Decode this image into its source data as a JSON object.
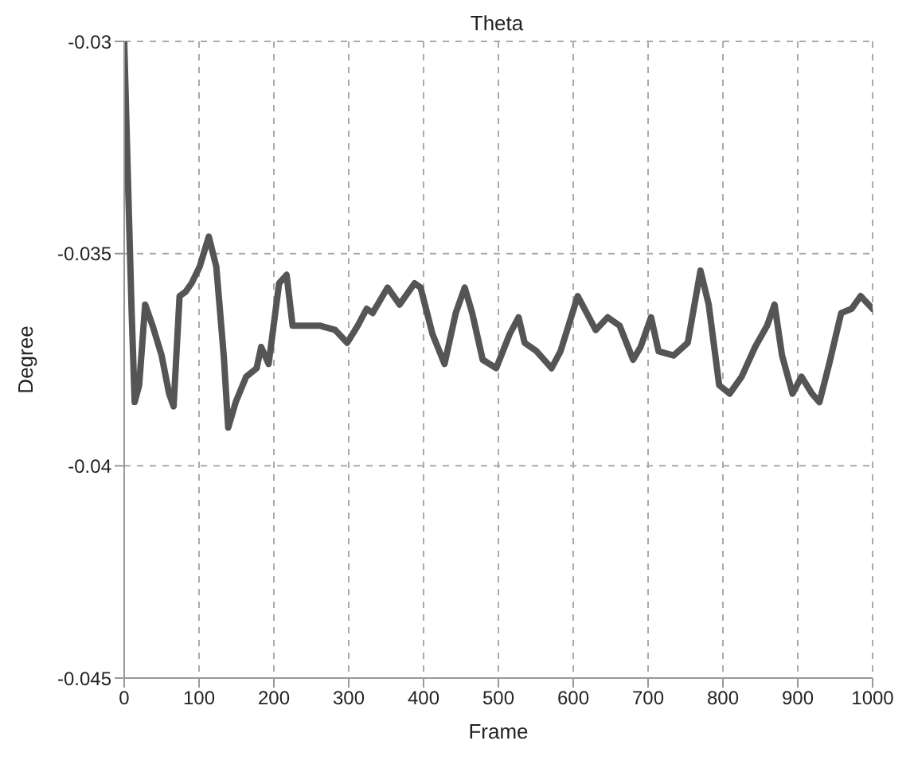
{
  "chart_data": {
    "type": "line",
    "title": "Theta",
    "xlabel": "Frame",
    "ylabel": "Degree",
    "x": [
      0,
      6,
      10,
      14,
      20,
      28,
      38,
      50,
      60,
      66,
      74,
      82,
      90,
      101,
      113,
      123,
      133,
      139,
      149,
      163,
      177,
      183,
      193,
      207,
      217,
      225,
      243,
      262,
      282,
      298,
      312,
      324,
      332,
      352,
      368,
      388,
      396,
      412,
      428,
      443,
      455,
      465,
      479,
      497,
      515,
      527,
      535,
      551,
      571,
      583,
      606,
      630,
      646,
      662,
      680,
      690,
      704,
      714,
      734,
      753,
      770,
      781,
      795,
      809,
      825,
      843,
      859,
      869,
      879,
      893,
      905,
      919,
      929,
      942,
      958,
      972,
      984,
      1000
    ],
    "series": [
      {
        "color": "#555555",
        "values": [
          -0.03,
          -0.0339,
          -0.0364,
          -0.0385,
          -0.0381,
          -0.0362,
          -0.0367,
          -0.0374,
          -0.0383,
          -0.0386,
          -0.036,
          -0.0359,
          -0.0357,
          -0.0353,
          -0.0346,
          -0.0353,
          -0.0374,
          -0.0391,
          -0.0385,
          -0.0379,
          -0.0377,
          -0.0372,
          -0.0376,
          -0.0357,
          -0.0355,
          -0.0367,
          -0.0367,
          -0.0367,
          -0.0368,
          -0.0371,
          -0.0367,
          -0.0363,
          -0.0364,
          -0.0358,
          -0.0362,
          -0.0357,
          -0.0358,
          -0.0369,
          -0.0376,
          -0.0364,
          -0.0358,
          -0.0364,
          -0.0375,
          -0.0377,
          -0.0369,
          -0.0365,
          -0.0371,
          -0.0373,
          -0.0377,
          -0.0373,
          -0.036,
          -0.0368,
          -0.0365,
          -0.0367,
          -0.0375,
          -0.0372,
          -0.0365,
          -0.0373,
          -0.0374,
          -0.0371,
          -0.0354,
          -0.0362,
          -0.0381,
          -0.0383,
          -0.0379,
          -0.0372,
          -0.0367,
          -0.0362,
          -0.0374,
          -0.0383,
          -0.0379,
          -0.0383,
          -0.0385,
          -0.0376,
          -0.0364,
          -0.0363,
          -0.036,
          -0.0363
        ]
      }
    ],
    "xlim": [
      0,
      1000
    ],
    "xticks": [
      0,
      100,
      200,
      300,
      400,
      500,
      600,
      700,
      800,
      900,
      1000
    ],
    "ylim": [
      -0.045,
      -0.03
    ],
    "yticks": [
      -0.045,
      -0.04,
      -0.035,
      -0.03
    ],
    "grid": true,
    "line_style": "solid",
    "marker": "none",
    "legend": false
  }
}
